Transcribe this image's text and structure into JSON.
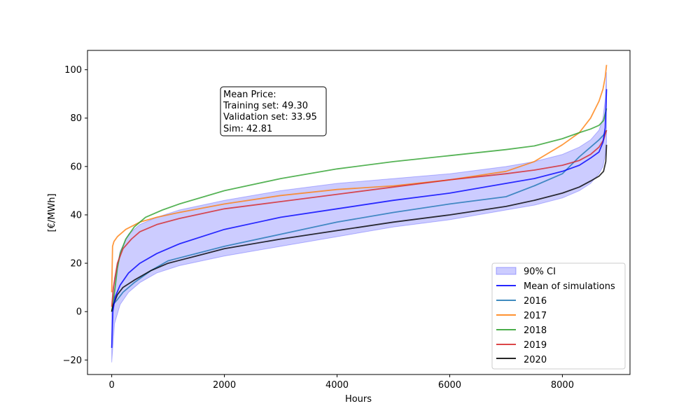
{
  "chart_data": {
    "type": "line",
    "title": "",
    "xlabel": "Hours",
    "ylabel": "[€/MWh]",
    "xlim": [
      -430,
      9200
    ],
    "ylim": [
      -26,
      108
    ],
    "xticks": [
      0,
      2000,
      4000,
      6000,
      8000
    ],
    "xtick_labels": [
      "0",
      "2000",
      "4000",
      "6000",
      "8000"
    ],
    "yticks": [
      -20,
      0,
      20,
      40,
      60,
      80,
      100
    ],
    "ytick_labels": [
      "−20",
      "0",
      "20",
      "40",
      "60",
      "80",
      "100"
    ],
    "grid": false,
    "legend_position": "lower-right",
    "annotation": {
      "lines": [
        "Mean Price:",
        "Training set: 49.30",
        "Validation set: 33.95",
        "Sim: 42.81"
      ]
    },
    "ci_band": {
      "name": "90% CI",
      "color": "#0000ff",
      "x": [
        0,
        50,
        150,
        300,
        500,
        800,
        1200,
        2000,
        3000,
        4000,
        5000,
        6000,
        7000,
        7500,
        8000,
        8300,
        8500,
        8650,
        8720,
        8760,
        8784
      ],
      "lower": [
        -21,
        -5,
        3,
        8,
        12,
        16,
        19,
        23,
        27,
        31,
        35,
        38,
        42,
        44,
        47,
        50,
        53,
        57,
        60,
        65,
        70
      ],
      "upper": [
        0,
        14,
        25,
        32,
        36,
        39,
        42,
        46,
        50,
        53,
        55,
        57,
        60,
        62,
        65,
        68,
        71,
        75,
        80,
        88,
        99
      ]
    },
    "series": [
      {
        "name": "Mean of simulations",
        "color": "#0000ff",
        "x": [
          0,
          20,
          60,
          150,
          300,
          500,
          800,
          1200,
          2000,
          3000,
          4000,
          5000,
          6000,
          7000,
          7500,
          8000,
          8300,
          8500,
          8650,
          8720,
          8760,
          8784
        ],
        "y": [
          -15,
          0,
          6,
          11,
          16,
          20,
          24,
          28,
          34,
          39,
          42.5,
          46,
          49,
          53,
          55,
          58,
          60.5,
          63.5,
          66,
          70,
          76,
          92
        ]
      },
      {
        "name": "2016",
        "color": "#1f77b4",
        "x": [
          0,
          30,
          100,
          200,
          400,
          700,
          1000,
          1500,
          2000,
          3000,
          4000,
          5000,
          6000,
          7000,
          7500,
          8000,
          8300,
          8500,
          8650,
          8730,
          8784
        ],
        "y": [
          0,
          3,
          5,
          8,
          12,
          17,
          21,
          24,
          27,
          32,
          37,
          41,
          44.5,
          47.5,
          52,
          57,
          64,
          68,
          71,
          73,
          75
        ]
      },
      {
        "name": "2017",
        "color": "#ff7f0e",
        "x": [
          0,
          15,
          40,
          100,
          250,
          500,
          800,
          1200,
          2000,
          3000,
          4000,
          5000,
          6000,
          7000,
          7500,
          8000,
          8300,
          8500,
          8650,
          8720,
          8760,
          8784
        ],
        "y": [
          8,
          27,
          29,
          31,
          34,
          37,
          39,
          41,
          44.5,
          48,
          50.5,
          52,
          54.5,
          58,
          62,
          69,
          74,
          80,
          87,
          92,
          97,
          102
        ]
      },
      {
        "name": "2018",
        "color": "#2ca02c",
        "x": [
          0,
          50,
          100,
          150,
          250,
          400,
          600,
          900,
          1200,
          2000,
          3000,
          4000,
          5000,
          6000,
          7000,
          7500,
          8000,
          8300,
          8500,
          8650,
          8730,
          8784
        ],
        "y": [
          0,
          8,
          18,
          24,
          30,
          35,
          39,
          42,
          44.5,
          50,
          55,
          59,
          62,
          64.5,
          67,
          68.5,
          71.5,
          74,
          75.5,
          77,
          79,
          84
        ]
      },
      {
        "name": "2019",
        "color": "#d62728",
        "x": [
          0,
          30,
          100,
          200,
          350,
          500,
          800,
          1200,
          2000,
          3000,
          4000,
          5000,
          6000,
          7000,
          7500,
          8000,
          8300,
          8500,
          8650,
          8730,
          8784
        ],
        "y": [
          2,
          10,
          20,
          26,
          30,
          33,
          36,
          38.5,
          42.5,
          45.5,
          48.5,
          51.5,
          54.5,
          57,
          58.5,
          60.5,
          62.5,
          65,
          68,
          71,
          75
        ]
      },
      {
        "name": "2020",
        "color": "#000000",
        "x": [
          0,
          30,
          100,
          200,
          400,
          700,
          1000,
          1500,
          2000,
          3000,
          4000,
          5000,
          6000,
          7000,
          7500,
          8000,
          8300,
          8500,
          8650,
          8730,
          8770,
          8784
        ],
        "y": [
          0,
          3,
          7,
          10,
          13,
          17,
          20,
          23,
          26,
          30,
          33.5,
          37,
          40,
          43.5,
          46,
          49,
          51.5,
          54,
          56,
          58,
          62,
          69
        ]
      }
    ]
  }
}
